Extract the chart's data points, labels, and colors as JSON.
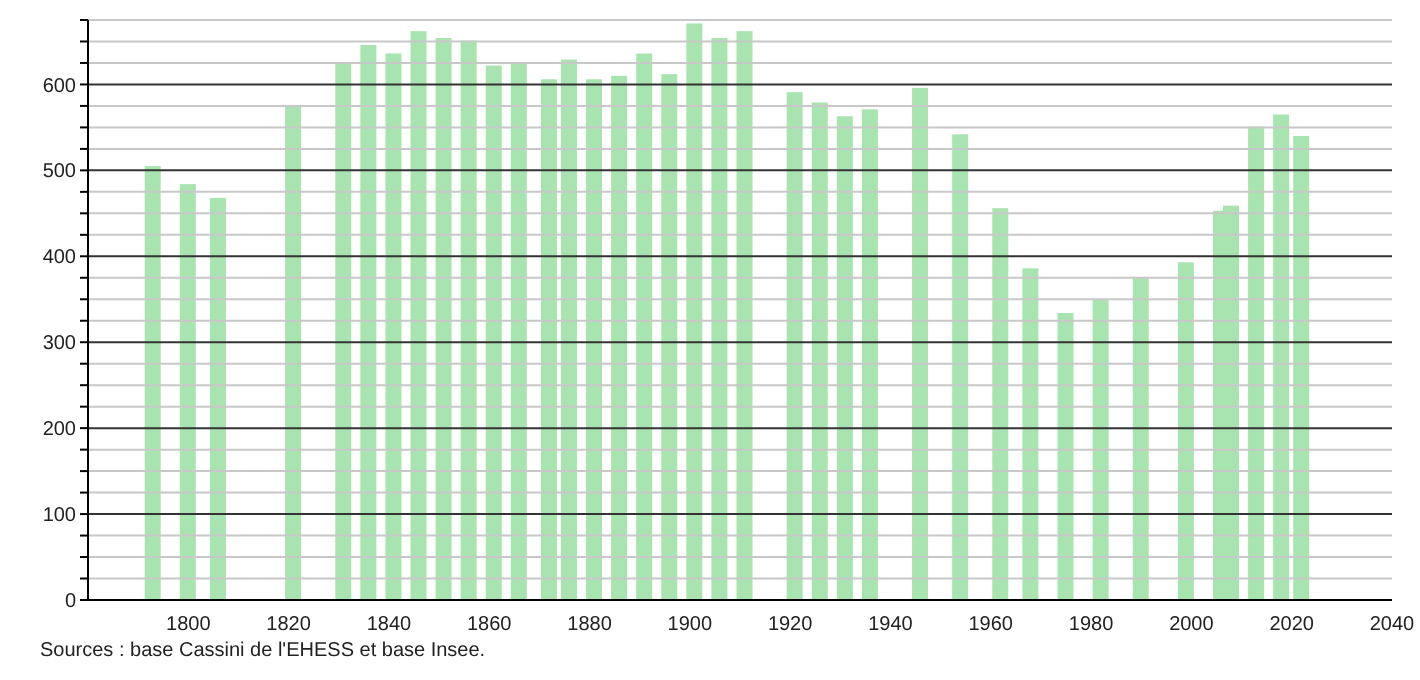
{
  "chart_data": {
    "type": "bar",
    "x": [
      1793,
      1800,
      1806,
      1821,
      1831,
      1836,
      1841,
      1846,
      1851,
      1856,
      1861,
      1866,
      1872,
      1876,
      1881,
      1886,
      1891,
      1896,
      1901,
      1906,
      1911,
      1921,
      1926,
      1931,
      1936,
      1946,
      1954,
      1962,
      1968,
      1975,
      1982,
      1990,
      1999,
      2006,
      2008,
      2013,
      2018,
      2022
    ],
    "values": [
      505,
      484,
      468,
      576,
      626,
      646,
      636,
      662,
      654,
      651,
      622,
      626,
      606,
      629,
      606,
      610,
      636,
      612,
      671,
      654,
      662,
      591,
      579,
      563,
      571,
      596,
      542,
      456,
      386,
      334,
      350,
      375,
      393,
      453,
      459,
      551,
      565,
      540
    ],
    "color": "#a8e4b0",
    "xlim": [
      1780,
      2040
    ],
    "xticks": [
      1800,
      1820,
      1840,
      1860,
      1880,
      1900,
      1920,
      1940,
      1960,
      1980,
      2000,
      2020,
      2040
    ],
    "ylim": [
      0,
      675
    ],
    "yticks": [
      0,
      {
        "value": 25,
        "label": null
      },
      {
        "value": 50,
        "label": null
      },
      {
        "value": 75,
        "label": null
      },
      100,
      {
        "value": 125,
        "label": null
      },
      {
        "value": 150,
        "label": null
      },
      {
        "value": 175,
        "label": null
      },
      200,
      {
        "value": 225,
        "label": null
      },
      {
        "value": 250,
        "label": null
      },
      {
        "value": 275,
        "label": null
      },
      300,
      {
        "value": 325,
        "label": null
      },
      {
        "value": 350,
        "label": null
      },
      {
        "value": 375,
        "label": null
      },
      400,
      {
        "value": 425,
        "label": null
      },
      {
        "value": 450,
        "label": null
      },
      {
        "value": 475,
        "label": null
      },
      500,
      {
        "value": 525,
        "label": null
      },
      {
        "value": 550,
        "label": null
      },
      {
        "value": 575,
        "label": null
      },
      600,
      {
        "value": 625,
        "label": null
      },
      {
        "value": 650,
        "label": null
      },
      {
        "value": 675,
        "label": null
      }
    ],
    "grid": "y",
    "annotations": [
      "Sources : base Cassini de l'EHESS et base Insee."
    ]
  }
}
